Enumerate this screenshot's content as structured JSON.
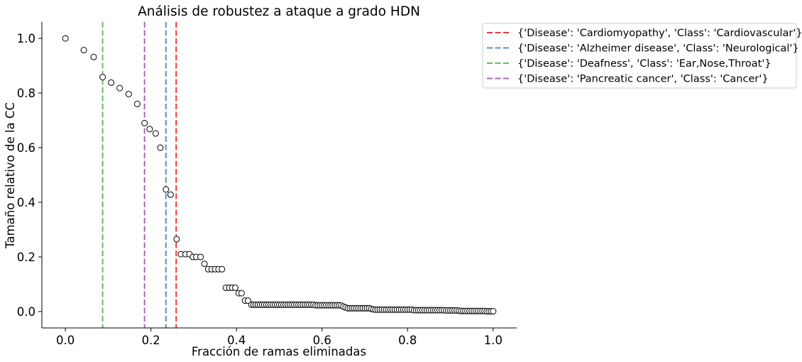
{
  "chart_data": {
    "type": "scatter",
    "title": "Análisis de robustez a ataque a grado HDN",
    "xlabel": "Fracción de ramas eliminadas",
    "ylabel": "Tamaño relativo de la CC",
    "xlim": [
      -0.055,
      1.055
    ],
    "ylim": [
      -0.06,
      1.06
    ],
    "xticks": [
      0.0,
      0.2,
      0.4,
      0.6,
      0.8,
      1.0
    ],
    "xtick_labels": [
      "0.0",
      "0.2",
      "0.4",
      "0.6",
      "0.8",
      "1.0"
    ],
    "yticks": [
      0.0,
      0.2,
      0.4,
      0.6,
      0.8,
      1.0
    ],
    "ytick_labels": [
      "0.0",
      "0.2",
      "0.4",
      "0.6",
      "0.8",
      "1.0"
    ],
    "grid": false,
    "legend_position": "outside top-right",
    "marker": {
      "face": "#ffffff",
      "edge": "#000000"
    },
    "points": [
      [
        0.0,
        1.0
      ],
      [
        0.043,
        0.957
      ],
      [
        0.066,
        0.932
      ],
      [
        0.087,
        0.858
      ],
      [
        0.107,
        0.838
      ],
      [
        0.127,
        0.818
      ],
      [
        0.148,
        0.796
      ],
      [
        0.168,
        0.76
      ],
      [
        0.185,
        0.69
      ],
      [
        0.197,
        0.668
      ],
      [
        0.211,
        0.652
      ],
      [
        0.222,
        0.6
      ],
      [
        0.235,
        0.447
      ],
      [
        0.246,
        0.428
      ],
      [
        0.26,
        0.265
      ],
      [
        0.27,
        0.21
      ],
      [
        0.281,
        0.21
      ],
      [
        0.29,
        0.21
      ],
      [
        0.298,
        0.2
      ],
      [
        0.306,
        0.2
      ],
      [
        0.316,
        0.2
      ],
      [
        0.325,
        0.175
      ],
      [
        0.334,
        0.155
      ],
      [
        0.342,
        0.155
      ],
      [
        0.35,
        0.155
      ],
      [
        0.358,
        0.155
      ],
      [
        0.366,
        0.155
      ],
      [
        0.375,
        0.087
      ],
      [
        0.383,
        0.087
      ],
      [
        0.39,
        0.087
      ],
      [
        0.397,
        0.087
      ],
      [
        0.405,
        0.067
      ],
      [
        0.412,
        0.067
      ],
      [
        0.42,
        0.04
      ],
      [
        0.427,
        0.04
      ],
      [
        0.435,
        0.025
      ],
      [
        0.44,
        0.025
      ],
      [
        0.445,
        0.025
      ],
      [
        0.45,
        0.025
      ],
      [
        0.455,
        0.025
      ],
      [
        0.46,
        0.025
      ],
      [
        0.465,
        0.025
      ],
      [
        0.47,
        0.025
      ],
      [
        0.475,
        0.025
      ],
      [
        0.48,
        0.025
      ],
      [
        0.485,
        0.025
      ],
      [
        0.49,
        0.025
      ],
      [
        0.495,
        0.025
      ],
      [
        0.5,
        0.025
      ],
      [
        0.505,
        0.025
      ],
      [
        0.51,
        0.025
      ],
      [
        0.515,
        0.025
      ],
      [
        0.52,
        0.025
      ],
      [
        0.525,
        0.025
      ],
      [
        0.53,
        0.025
      ],
      [
        0.535,
        0.025
      ],
      [
        0.54,
        0.025
      ],
      [
        0.545,
        0.025
      ],
      [
        0.55,
        0.025
      ],
      [
        0.555,
        0.025
      ],
      [
        0.56,
        0.025
      ],
      [
        0.565,
        0.025
      ],
      [
        0.57,
        0.025
      ],
      [
        0.575,
        0.025
      ],
      [
        0.58,
        0.025
      ],
      [
        0.585,
        0.023
      ],
      [
        0.59,
        0.023
      ],
      [
        0.595,
        0.023
      ],
      [
        0.6,
        0.023
      ],
      [
        0.605,
        0.023
      ],
      [
        0.61,
        0.023
      ],
      [
        0.615,
        0.023
      ],
      [
        0.62,
        0.023
      ],
      [
        0.625,
        0.023
      ],
      [
        0.63,
        0.023
      ],
      [
        0.635,
        0.023
      ],
      [
        0.64,
        0.023
      ],
      [
        0.645,
        0.022
      ],
      [
        0.65,
        0.018
      ],
      [
        0.655,
        0.015
      ],
      [
        0.66,
        0.012
      ],
      [
        0.665,
        0.012
      ],
      [
        0.67,
        0.012
      ],
      [
        0.675,
        0.012
      ],
      [
        0.68,
        0.012
      ],
      [
        0.685,
        0.012
      ],
      [
        0.69,
        0.012
      ],
      [
        0.695,
        0.012
      ],
      [
        0.7,
        0.012
      ],
      [
        0.705,
        0.012
      ],
      [
        0.71,
        0.012
      ],
      [
        0.715,
        0.01
      ],
      [
        0.72,
        0.008
      ],
      [
        0.725,
        0.007
      ],
      [
        0.73,
        0.007
      ],
      [
        0.735,
        0.007
      ],
      [
        0.74,
        0.007
      ],
      [
        0.745,
        0.007
      ],
      [
        0.75,
        0.007
      ],
      [
        0.755,
        0.007
      ],
      [
        0.76,
        0.007
      ],
      [
        0.765,
        0.007
      ],
      [
        0.77,
        0.007
      ],
      [
        0.775,
        0.007
      ],
      [
        0.78,
        0.007
      ],
      [
        0.785,
        0.007
      ],
      [
        0.79,
        0.007
      ],
      [
        0.795,
        0.007
      ],
      [
        0.8,
        0.007
      ],
      [
        0.805,
        0.007
      ],
      [
        0.81,
        0.007
      ],
      [
        0.815,
        0.005
      ],
      [
        0.82,
        0.005
      ],
      [
        0.825,
        0.005
      ],
      [
        0.83,
        0.005
      ],
      [
        0.835,
        0.005
      ],
      [
        0.84,
        0.005
      ],
      [
        0.845,
        0.005
      ],
      [
        0.85,
        0.005
      ],
      [
        0.855,
        0.005
      ],
      [
        0.86,
        0.005
      ],
      [
        0.865,
        0.005
      ],
      [
        0.87,
        0.005
      ],
      [
        0.875,
        0.005
      ],
      [
        0.88,
        0.005
      ],
      [
        0.885,
        0.005
      ],
      [
        0.89,
        0.004
      ],
      [
        0.895,
        0.004
      ],
      [
        0.9,
        0.004
      ],
      [
        0.905,
        0.004
      ],
      [
        0.91,
        0.004
      ],
      [
        0.915,
        0.004
      ],
      [
        0.92,
        0.003
      ],
      [
        0.925,
        0.002
      ],
      [
        0.93,
        0.002
      ],
      [
        0.935,
        0.002
      ],
      [
        0.94,
        0.002
      ],
      [
        0.945,
        0.002
      ],
      [
        0.95,
        0.002
      ],
      [
        0.955,
        0.002
      ],
      [
        0.96,
        0.002
      ],
      [
        0.965,
        0.002
      ],
      [
        0.97,
        0.002
      ],
      [
        0.975,
        0.002
      ],
      [
        0.98,
        0.002
      ],
      [
        0.985,
        0.001
      ],
      [
        0.99,
        0.001
      ],
      [
        0.995,
        0.001
      ],
      [
        1.0,
        0.001
      ]
    ],
    "vlines": [
      {
        "x": 0.259,
        "color": "#e41a1c",
        "label": "{'Disease': 'Cardiomyopathy', 'Class': 'Cardiovascular'}"
      },
      {
        "x": 0.235,
        "color": "#377eb8",
        "label": "{'Disease': 'Alzheimer disease', 'Class': 'Neurological'}"
      },
      {
        "x": 0.087,
        "color": "#4daf4a",
        "label": "{'Disease': 'Deafness', 'Class': 'Ear,Nose,Throat'}"
      },
      {
        "x": 0.185,
        "color": "#984ea3",
        "label": "{'Disease': 'Pancreatic cancer', 'Class': 'Cancer'}"
      }
    ]
  }
}
